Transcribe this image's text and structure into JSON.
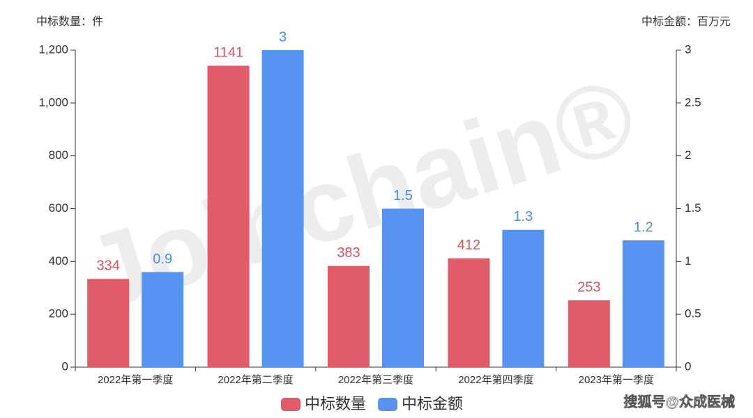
{
  "chart_data": {
    "type": "bar",
    "y_axis_label": "中标数量：件",
    "y2_axis_label": "中标金额：百万元",
    "categories": [
      "2022年第一季度",
      "2022年第二季度",
      "2022年第三季度",
      "2022年第四季度",
      "2023年第一季度"
    ],
    "series": [
      {
        "name": "中标数量",
        "color": "#e15b69",
        "label_color": "#d9525f",
        "values": [
          334,
          1141,
          383,
          412,
          253
        ]
      },
      {
        "name": "中标金额",
        "color": "#5794f2",
        "label_color": "#4a8ee0",
        "axis": "y2",
        "values": [
          0.9,
          3,
          1.5,
          1.3,
          1.2
        ]
      }
    ],
    "ylim": [
      0,
      1200
    ],
    "yticks": [
      0,
      200,
      400,
      600,
      800,
      {
        "value": 1000,
        "label": "1,000"
      },
      {
        "value": 1200,
        "label": "1,200"
      }
    ],
    "y2lim": [
      0,
      3
    ],
    "y2ticks": [
      0,
      0.5,
      1,
      1.5,
      2,
      2.5,
      3
    ],
    "grid": false,
    "legend": "bottom",
    "watermark": "Joinchain®",
    "source": "搜狐号@众成医械"
  }
}
